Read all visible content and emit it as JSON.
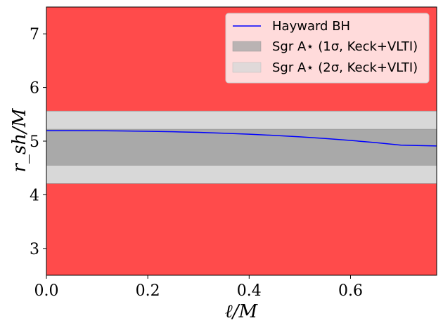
{
  "chart_data": {
    "type": "line",
    "xlabel": "ℓ/M",
    "ylabel": "r_sh/M",
    "xlim": [
      0.0,
      0.77
    ],
    "ylim": [
      2.5,
      7.5
    ],
    "grid": false,
    "legend_placement": "top-right",
    "x_ticks": [
      "0.0",
      "0.2",
      "0.4",
      "0.6"
    ],
    "y_ticks": [
      "3",
      "4",
      "5",
      "6",
      "7"
    ],
    "x_tick_values": [
      0.0,
      0.2,
      0.4,
      0.6
    ],
    "y_tick_values": [
      3,
      4,
      5,
      6,
      7
    ],
    "excluded_regions_color": "#ff4b4b",
    "bands": [
      {
        "name": "Sgr A* (2σ, Keck+VLTI)",
        "ymin": 4.21,
        "ymax": 5.56,
        "color": "#d8d8d8"
      },
      {
        "name": "Sgr A* (1σ, Keck+VLTI)",
        "ymin": 4.55,
        "ymax": 5.22,
        "color": "#a9a9a9"
      }
    ],
    "series": [
      {
        "name": "Hayward BH",
        "color": "#0000ff",
        "x": [
          0.0,
          0.05,
          0.1,
          0.15,
          0.2,
          0.25,
          0.3,
          0.35,
          0.4,
          0.45,
          0.5,
          0.55,
          0.6,
          0.65,
          0.7,
          0.77
        ],
        "y": [
          5.196,
          5.196,
          5.194,
          5.189,
          5.184,
          5.175,
          5.163,
          5.148,
          5.129,
          5.107,
          5.08,
          5.049,
          5.013,
          4.972,
          4.925,
          4.91
        ]
      }
    ],
    "legend": [
      {
        "label": "Hayward BH",
        "kind": "line",
        "color": "#0000ff"
      },
      {
        "label": "Sgr A⋆ (1σ, Keck+VLTI)",
        "kind": "patch",
        "color": "#a9a9a9"
      },
      {
        "label": "Sgr A⋆ (2σ, Keck+VLTI)",
        "kind": "patch",
        "color": "#d8d8d8"
      }
    ]
  }
}
